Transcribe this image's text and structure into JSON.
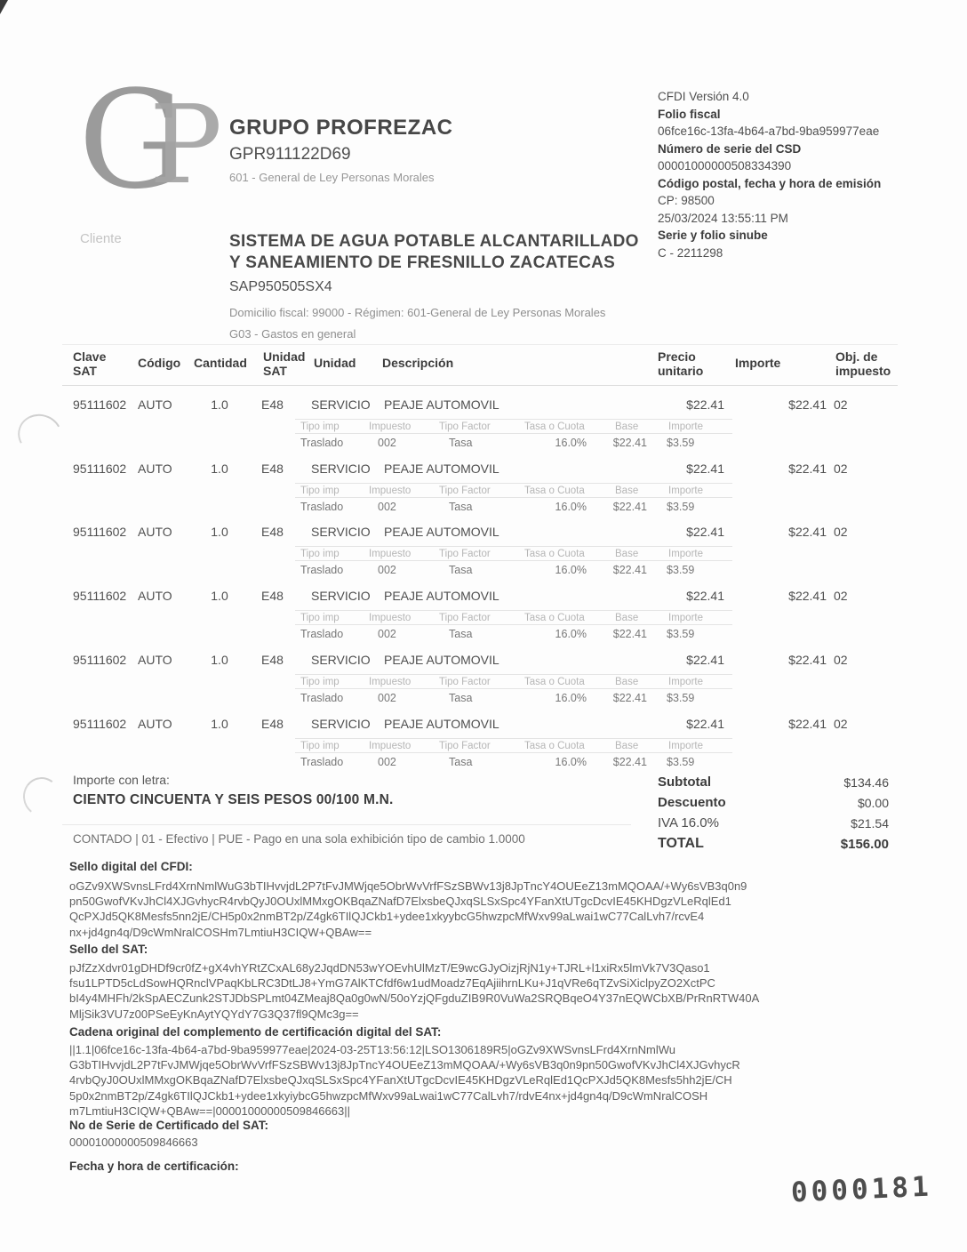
{
  "colors": {
    "logo_gray": "#9b9b9b",
    "stamp_ink": "#4d4d4d",
    "text_dark": "#3c3c3c",
    "text_light": "#b6b6b6"
  },
  "issuer": {
    "monogram_letter1": "G",
    "monogram_letter2": "P",
    "name": "GRUPO PROFREZAC",
    "rfc": "GPR911122D69",
    "regimen": "601 - General de Ley Personas Morales"
  },
  "cfdi": {
    "version": "CFDI Versión 4.0",
    "folio_fiscal_label": "Folio fiscal",
    "folio_fiscal": "06fce16c-13fa-4b64-a7bd-9ba959977eae",
    "csd_label": "Número de serie del CSD",
    "csd_serial": "00001000000508334390",
    "emision_label": "Código postal, fecha y hora de emisión",
    "codigo_postal": "CP: 98500",
    "fecha_emision": "25/03/2024 13:55:11 PM",
    "serie_folio_label": "Serie y folio sinube",
    "serie_folio": "C - 2211298"
  },
  "cliente": {
    "label": "Cliente",
    "nombre_linea1": "SISTEMA DE AGUA POTABLE ALCANTARILLADO",
    "nombre_linea2": "Y SANEAMIENTO DE FRESNILLO ZACATECAS",
    "rfc": "SAP950505SX4",
    "domicilio": "Domicilio fiscal: 99000 - Régimen: 601-General de Ley Personas Morales",
    "uso_cfdi": "G03 - Gastos en general"
  },
  "tabla": {
    "headers": {
      "clave_sat": "Clave\nSAT",
      "codigo": "Código",
      "cantidad": "Cantidad",
      "unidad_sat": "Unidad\nSAT",
      "unidad": "Unidad",
      "descripcion": "Descripción",
      "precio_unitario": "Precio\nunitario",
      "importe": "Importe",
      "obj_impuesto": "Obj. de\nimpuesto"
    },
    "tax_headers": [
      "Tipo imp",
      "Impuesto",
      "Tipo Factor",
      "Tasa o Cuota",
      "Base",
      "Importe"
    ],
    "items": [
      {
        "clave": "95111602",
        "codigo": "AUTO",
        "cantidad": "1.0",
        "unidad_sat": "E48",
        "unidad": "SERVICIO",
        "descripcion": "PEAJE AUTOMOVIL",
        "precio": "$22.41",
        "importe": "$22.41",
        "obj": "02",
        "tax": {
          "tipo": "Traslado",
          "impuesto": "002",
          "factor": "Tasa",
          "tasa": "16.0%",
          "base": "$22.41",
          "importe": "$3.59"
        }
      },
      {
        "clave": "95111602",
        "codigo": "AUTO",
        "cantidad": "1.0",
        "unidad_sat": "E48",
        "unidad": "SERVICIO",
        "descripcion": "PEAJE AUTOMOVIL",
        "precio": "$22.41",
        "importe": "$22.41",
        "obj": "02",
        "tax": {
          "tipo": "Traslado",
          "impuesto": "002",
          "factor": "Tasa",
          "tasa": "16.0%",
          "base": "$22.41",
          "importe": "$3.59"
        }
      },
      {
        "clave": "95111602",
        "codigo": "AUTO",
        "cantidad": "1.0",
        "unidad_sat": "E48",
        "unidad": "SERVICIO",
        "descripcion": "PEAJE AUTOMOVIL",
        "precio": "$22.41",
        "importe": "$22.41",
        "obj": "02",
        "tax": {
          "tipo": "Traslado",
          "impuesto": "002",
          "factor": "Tasa",
          "tasa": "16.0%",
          "base": "$22.41",
          "importe": "$3.59"
        }
      },
      {
        "clave": "95111602",
        "codigo": "AUTO",
        "cantidad": "1.0",
        "unidad_sat": "E48",
        "unidad": "SERVICIO",
        "descripcion": "PEAJE AUTOMOVIL",
        "precio": "$22.41",
        "importe": "$22.41",
        "obj": "02",
        "tax": {
          "tipo": "Traslado",
          "impuesto": "002",
          "factor": "Tasa",
          "tasa": "16.0%",
          "base": "$22.41",
          "importe": "$3.59"
        }
      },
      {
        "clave": "95111602",
        "codigo": "AUTO",
        "cantidad": "1.0",
        "unidad_sat": "E48",
        "unidad": "SERVICIO",
        "descripcion": "PEAJE AUTOMOVIL",
        "precio": "$22.41",
        "importe": "$22.41",
        "obj": "02",
        "tax": {
          "tipo": "Traslado",
          "impuesto": "002",
          "factor": "Tasa",
          "tasa": "16.0%",
          "base": "$22.41",
          "importe": "$3.59"
        }
      },
      {
        "clave": "95111602",
        "codigo": "AUTO",
        "cantidad": "1.0",
        "unidad_sat": "E48",
        "unidad": "SERVICIO",
        "descripcion": "PEAJE AUTOMOVIL",
        "precio": "$22.41",
        "importe": "$22.41",
        "obj": "02",
        "tax": {
          "tipo": "Traslado",
          "impuesto": "002",
          "factor": "Tasa",
          "tasa": "16.0%",
          "base": "$22.41",
          "importe": "$3.59"
        }
      }
    ]
  },
  "totales": {
    "importe_letra_label": "Importe con letra:",
    "importe_letra": "CIENTO CINCUENTA Y SEIS PESOS 00/100 M.N.",
    "subtotal_label": "Subtotal",
    "subtotal": "$134.46",
    "descuento_label": "Descuento",
    "descuento": "$0.00",
    "iva_label": "IVA 16.0%",
    "iva": "$21.54",
    "total_label": "TOTAL",
    "total": "$156.00",
    "forma_pago": "CONTADO   |   01 - Efectivo   |   PUE - Pago en una sola exhibición  tipo de cambio  1.0000"
  },
  "sellos": {
    "cfdi_label": "Sello digital del CFDI:",
    "cfdi_lines": [
      "oGZv9XWSvnsLFrd4XrnNmlWuG3bTIHvvjdL2P7tFvJMWjqe5ObrWvVrfFSzSBWv13j8JpTncY4OUEeZ13mMQOAA/+Wy6sVB3q0n9",
      "pn50GwofVKvJhCl4XJGvhycR4rvbQyJ0OUxlMMxgOKBqaZNafD7ElxsbeQJxqSLSxSpc4YFanXtUTgcDcvIE45KHDgzVLeRqlEd1",
      "QcPXJd5QK8Mesfs5nn2jE/CH5p0x2nmBT2p/Z4gk6TIlQJCkb1+ydee1xkyybcG5hwzpcMfWxv99aLwai1wC77CalLvh7/rcvE4",
      "nx+jd4gn4q/D9cWmNralCOSHm7LmtiuH3CIQW+QBAw=="
    ],
    "sat_label": "Sello del SAT:",
    "sat_lines": [
      "pJfZzXdvr01gDHDf9cr0fZ+gX4vhYRtZCxAL68y2JqdDN53wYOEvhUlMzT/E9wcGJyOizjRjN1y+TJRL+l1xiRx5lmVk7V3Qaso1",
      "fsu1LPTD5cLdSowHQRnclVPaqKbLRC3DtLJ8+YmG7AlKTCfdf6w1udMoadz7EqAjiihrnLKu+J1qVRe6qTZvSiXiclpyZO2XctPC",
      "bI4y4MHFh/2kSpAECZunk2STJDbSPLmt04ZMeaj8Qa0g0wN/50oYzjQFgduZIB9R0VuWa2SRQBqeO4Y37nEQWCbXB/PrRnRTW40A",
      "MljSik3VU7z00PSeEyKnAytYQYdY7G3Q37fl9QMc3g=="
    ],
    "cadena_label": "Cadena original del complemento de certificación digital del SAT:",
    "cadena_lines": [
      "||1.1|06fce16c-13fa-4b64-a7bd-9ba959977eae|2024-03-25T13:56:12|LSO1306189R5|oGZv9XWSvnsLFrd4XrnNmlWu",
      "G3bTIHvvjdL2P7tFvJMWjqe5ObrWvVrfFSzSBWv13j8JpTncY4OUEeZ13mMQOAA/+Wy6sVB3q0n9pn50GwofVKvJhCl4XJGvhycR",
      "4rvbQyJ0OUxlMMxgOKBqaZNafD7ElxsbeQJxqSLSxSpc4YFanXtUTgcDcvIE45KHDgzVLeRqlEd1QcPXJd5QK8Mesfs5hh2jE/CH",
      "5p0x2nmBT2p/Z4gk6TIlQJCkb1+ydee1xkyiybcG5hwzpcMfWxv99aLwai1wC77CalLvh7/rdvE4nx+jd4gn4q/D9cWmNralCOSH",
      "m7LmtiuH3CIQW+QBAw==|00001000000509846663||"
    ],
    "no_serie_label": "No de Serie de Certificado del SAT:",
    "no_serie": "00001000000509846663",
    "fecha_cert_label": "Fecha y hora de certificación:"
  },
  "folio_stamp": "0000181"
}
